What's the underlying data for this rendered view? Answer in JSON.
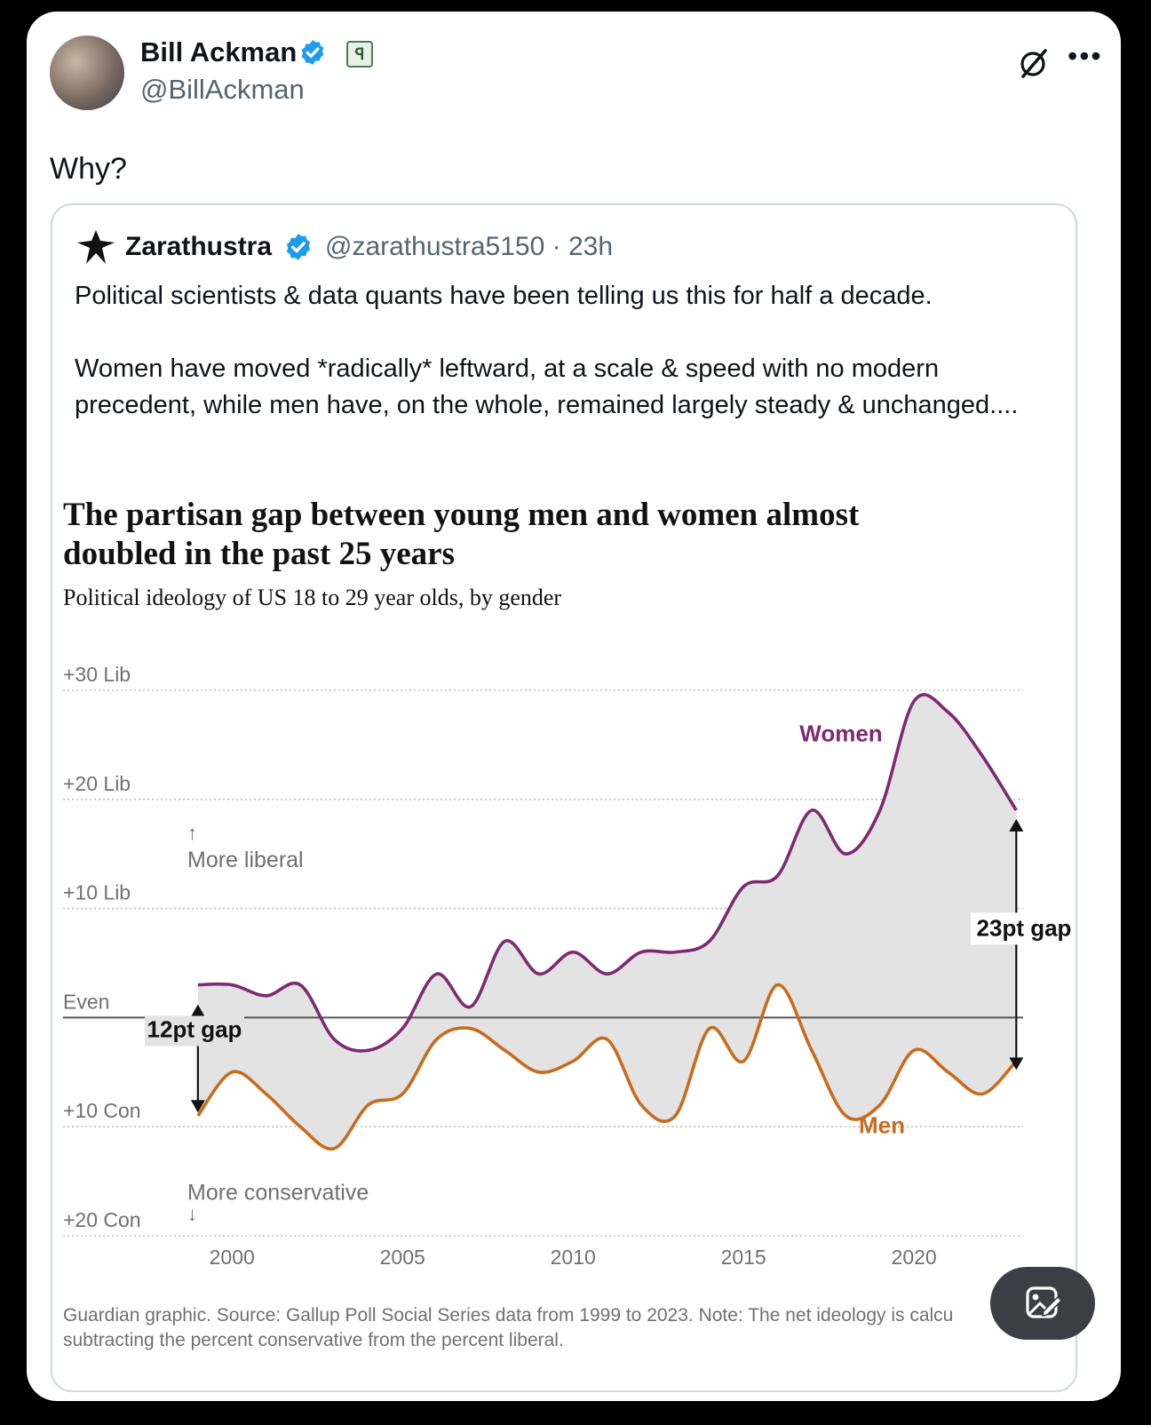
{
  "author": {
    "name": "Bill Ackman",
    "handle": "@BillAckman"
  },
  "tweet_text": "Why?",
  "icons": [
    "verified-badge-icon",
    "affiliate-badge-icon",
    "grok-icon",
    "more-icon",
    "grok-image-edit-icon"
  ],
  "quoted_tweet": {
    "author_name": "Zarathustra",
    "handle": "@zarathustra5150",
    "separator": "·",
    "time": "23h",
    "paragraphs": [
      "Political scientists & data quants have been telling us this for half a decade.",
      "Women have moved *radically* leftward, at a scale & speed with no modern precedent, while men have, on the whole, remained largely steady & unchanged...."
    ]
  },
  "chart_data": {
    "type": "line",
    "title": "The partisan gap between young men and women almost doubled in the past 25 years",
    "subtitle": "Political ideology of US 18 to 29 year olds, by gender",
    "y_tick_labels": [
      {
        "value": 30,
        "label": "+30 Lib"
      },
      {
        "value": 20,
        "label": "+20 Lib"
      },
      {
        "value": 10,
        "label": "+10 Lib"
      },
      {
        "value": 0,
        "label": "Even"
      },
      {
        "value": -10,
        "label": "+10 Con"
      },
      {
        "value": -20,
        "label": "+20 Con"
      }
    ],
    "x_ticks": [
      2000,
      2005,
      2010,
      2015,
      2020
    ],
    "xlim": [
      1998.9,
      2023.2
    ],
    "ylim": [
      -20,
      30
    ],
    "series": [
      {
        "name": "Women",
        "color": "#7d2a73",
        "x": [
          1999,
          2000,
          2001,
          2002,
          2003,
          2004,
          2005,
          2006,
          2007,
          2008,
          2009,
          2010,
          2011,
          2012,
          2013,
          2014,
          2015,
          2016,
          2017,
          2018,
          2019,
          2020,
          2021,
          2022,
          2023
        ],
        "values": [
          3,
          3,
          2,
          3,
          -2,
          -3,
          -1,
          4,
          1,
          7,
          4,
          6,
          4,
          6,
          6,
          7,
          12,
          13,
          19,
          15,
          19,
          29,
          28,
          24,
          19
        ]
      },
      {
        "name": "Men",
        "color": "#c86b1e",
        "x": [
          1999,
          2000,
          2001,
          2002,
          2003,
          2004,
          2005,
          2006,
          2007,
          2008,
          2009,
          2010,
          2011,
          2012,
          2013,
          2014,
          2015,
          2016,
          2017,
          2018,
          2019,
          2020,
          2021,
          2022,
          2023
        ],
        "values": [
          -9,
          -5,
          -7,
          -10,
          -12,
          -8,
          -7,
          -2,
          -1,
          -3,
          -5,
          -4,
          -2,
          -8,
          -9,
          -1,
          -4,
          3,
          -3,
          -9,
          -8,
          -3,
          -5,
          -7,
          -4
        ]
      }
    ],
    "annotations": {
      "more_liberal": "More liberal",
      "more_conservative": "More conservative",
      "gap_1999": "12pt gap",
      "gap_2023": "23pt gap",
      "up_arrow": "↑",
      "down_arrow": "↓"
    },
    "gap_range": {
      "gap_1999": [
        -9,
        3
      ],
      "gap_2023": [
        -4,
        19
      ]
    },
    "grid": true,
    "legend": "inline labels",
    "source_note": "Guardian graphic. Source: Gallup Poll Social Series data from 1999 to 2023. Note: The net ideology is calcu",
    "source_note_2": "subtracting the percent conservative from the percent liberal."
  }
}
